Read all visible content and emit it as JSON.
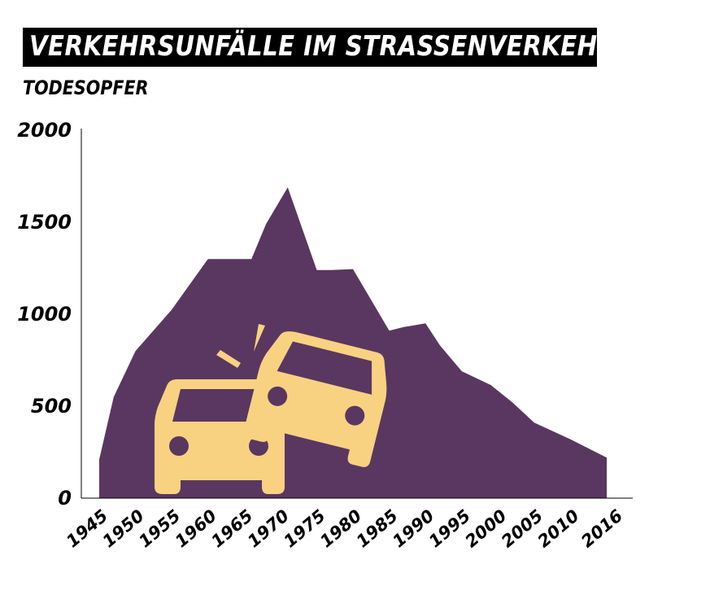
{
  "title": "VERKEHRSUNFÄLLE IM STRASSENVERKEHR",
  "subtitle": "TODESOPFER",
  "colors": {
    "area": "#5a3760",
    "cars": "#f8d281",
    "title_bg": "#000000",
    "title_text": "#ffffff"
  },
  "icon": "car-crash-icon",
  "chart_data": {
    "type": "area",
    "title": "VERKEHRSUNFÄLLE IM STRASSENVERKEHR",
    "ylabel": "TODESOPFER",
    "xlabel": "",
    "ylim": [
      0,
      2000
    ],
    "yticks": [
      "2000",
      "1500",
      "1000",
      "500",
      "0"
    ],
    "x_tick_labels": [
      "1945",
      "1950",
      "1955",
      "1960",
      "1965",
      "1970",
      "1975",
      "1980",
      "1985",
      "1990",
      "1995",
      "2000",
      "2005",
      "2010",
      "2016"
    ],
    "x_ticks": [
      1945,
      1950,
      1955,
      1960,
      1965,
      1970,
      1975,
      1980,
      1985,
      1990,
      1995,
      2000,
      2005,
      2010,
      2016
    ],
    "x": [
      1945,
      1947,
      1950,
      1955,
      1960,
      1963,
      1966,
      1968,
      1971,
      1975,
      1977,
      1980,
      1985,
      1987,
      1990,
      1992,
      1995,
      1999,
      2002,
      2005,
      2010,
      2015
    ],
    "values": [
      210,
      550,
      800,
      1025,
      1300,
      1300,
      1300,
      1490,
      1690,
      1240,
      1240,
      1245,
      910,
      930,
      950,
      830,
      690,
      615,
      520,
      410,
      320,
      220
    ],
    "grid": false,
    "legend": "none"
  }
}
